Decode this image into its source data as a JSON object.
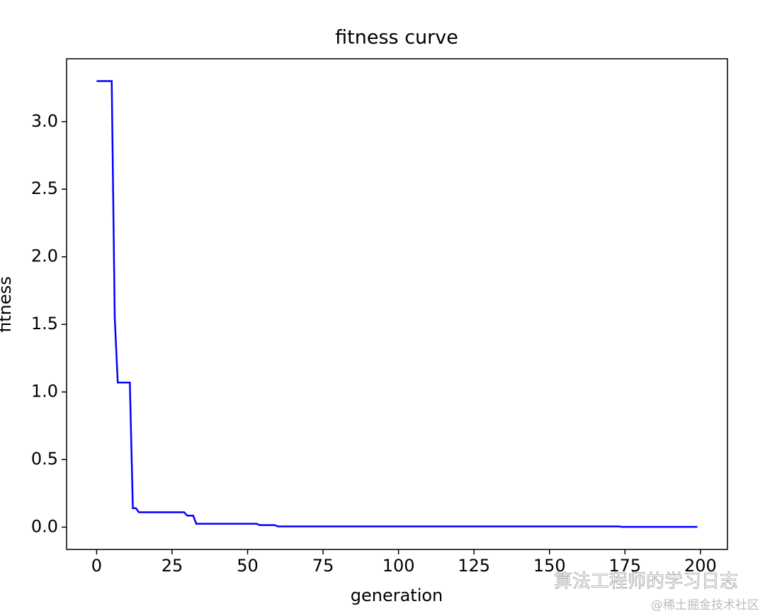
{
  "chart_data": {
    "type": "line",
    "title": "fitness curve",
    "xlabel": "generation",
    "ylabel": "fitness",
    "x": [
      0,
      5,
      6,
      7,
      11,
      12,
      13,
      14,
      29,
      30,
      32,
      33,
      53,
      54,
      59,
      60,
      173,
      174,
      199
    ],
    "series": [
      {
        "name": "fitness",
        "color": "#0000ff",
        "values": [
          3.3,
          3.3,
          1.55,
          1.07,
          1.07,
          0.14,
          0.14,
          0.11,
          0.11,
          0.085,
          0.085,
          0.025,
          0.025,
          0.015,
          0.015,
          0.005,
          0.005,
          0.002,
          0.002
        ]
      }
    ],
    "xlim": [
      -9.95,
      208.95
    ],
    "ylim": [
      -0.165,
      3.465
    ],
    "xticks": [
      0,
      25,
      50,
      75,
      100,
      125,
      150,
      175,
      200
    ],
    "yticks": [
      {
        "value": 0,
        "label": "0.0"
      },
      0.5,
      {
        "value": 1,
        "label": "1.0"
      },
      1.5,
      {
        "value": 2,
        "label": "2.0"
      },
      2.5,
      {
        "value": 3,
        "label": "3.0"
      }
    ],
    "grid": false,
    "annotations": [
      "算法工程师的学习日志",
      "@稀土掘金技术社区"
    ]
  }
}
